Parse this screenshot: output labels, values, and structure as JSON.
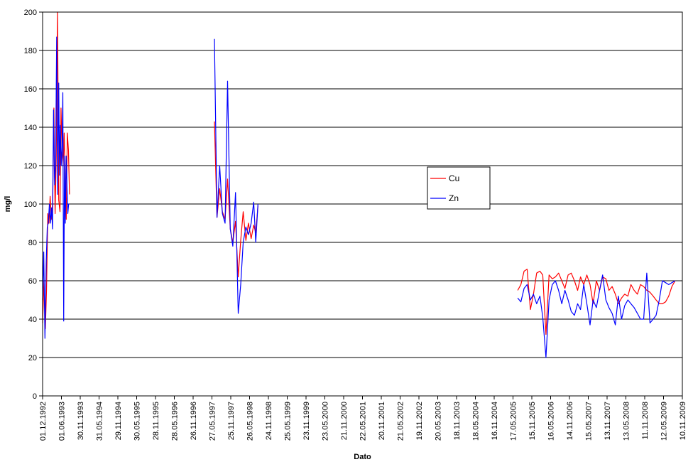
{
  "chart_data": {
    "type": "line",
    "title": "",
    "xlabel": "Dato",
    "ylabel": "mg/l",
    "ylim": [
      0,
      200
    ],
    "y_ticks": [
      "0",
      "20",
      "40",
      "60",
      "80",
      "100",
      "120",
      "140",
      "160",
      "180",
      "200"
    ],
    "x_ticks": [
      "01.12.1992",
      "01.06.1993",
      "30.11.1993",
      "31.05.1994",
      "29.11.1994",
      "30.05.1995",
      "28.11.1995",
      "28.05.1996",
      "26.11.1996",
      "27.05.1997",
      "25.11.1997",
      "26.05.1998",
      "24.11.1998",
      "25.05.1999",
      "23.11.1999",
      "23.05.2000",
      "21.11.2000",
      "22.05.2001",
      "20.11.2001",
      "21.05.2002",
      "19.11.2002",
      "20.05.2003",
      "18.11.2003",
      "18.05.2004",
      "16.11.2004",
      "17.05.2005",
      "15.11.2005",
      "16.05.2006",
      "14.11.2006",
      "15.05.2007",
      "13.11.2007",
      "13.05.2008",
      "11.11.2008",
      "12.05.2009",
      "10.11.2009"
    ],
    "x_range": [
      "1992-12-01",
      "2009-11-10"
    ],
    "grid": "horizontal",
    "legend_position": "center-right",
    "series": [
      {
        "name": "Cu",
        "color": "#ff0000",
        "segments": [
          {
            "x": [
              "1992-12-01",
              "1992-12-14",
              "1992-12-28",
              "1993-01-08",
              "1993-01-20",
              "1993-02-01",
              "1993-02-12",
              "1993-02-24",
              "1993-03-08",
              "1993-03-20",
              "1993-04-01",
              "1993-04-12",
              "1993-04-24",
              "1993-05-06",
              "1993-05-18",
              "1993-05-28",
              "1993-06-08",
              "1993-06-18",
              "1993-06-28",
              "1993-07-08",
              "1993-07-18",
              "1993-07-28",
              "1993-08-08",
              "1993-08-18"
            ],
            "y": [
              38,
              60,
              35,
              55,
              95,
              90,
              104,
              92,
              100,
              150,
              95,
              125,
              200,
              102,
              96,
              150,
              127,
              120,
              137,
              110,
              92,
              137,
              128,
              105
            ]
          },
          {
            "x": [
              "1997-06-20",
              "1997-07-15",
              "1997-08-10",
              "1997-09-05",
              "1997-10-01",
              "1997-10-25",
              "1997-11-20",
              "1997-12-15",
              "1998-01-10",
              "1998-02-05",
              "1998-03-01",
              "1998-03-25",
              "1998-04-20",
              "1998-05-15",
              "1998-06-10",
              "1998-07-05",
              "1998-07-25",
              "1998-08-15"
            ],
            "y": [
              143,
              93,
              108,
              96,
              92,
              113,
              87,
              80,
              91,
              62,
              81,
              96,
              81,
              90,
              82,
              89,
              85,
              99
            ]
          },
          {
            "x": [
              "2005-07-01",
              "2005-08-01",
              "2005-09-01",
              "2005-10-01",
              "2005-11-01",
              "2005-12-01",
              "2006-01-01",
              "2006-02-01",
              "2006-03-01",
              "2006-04-01",
              "2006-05-01",
              "2006-06-01",
              "2006-07-01",
              "2006-08-01",
              "2006-09-01",
              "2006-10-01",
              "2006-11-01",
              "2006-12-01",
              "2007-01-01",
              "2007-02-01",
              "2007-03-01",
              "2007-04-01",
              "2007-05-01",
              "2007-06-01",
              "2007-07-01",
              "2007-08-01",
              "2007-09-01",
              "2007-10-01",
              "2007-11-01",
              "2007-12-01",
              "2008-01-01",
              "2008-02-01",
              "2008-03-01",
              "2008-04-01",
              "2008-05-01",
              "2008-06-01",
              "2008-07-01",
              "2008-08-01",
              "2008-09-01",
              "2008-10-01",
              "2008-11-01",
              "2008-12-01",
              "2009-01-01",
              "2009-02-01",
              "2009-03-01",
              "2009-04-01",
              "2009-05-01",
              "2009-06-01",
              "2009-07-01",
              "2009-08-01",
              "2009-09-01"
            ],
            "y": [
              55,
              58,
              65,
              66,
              45,
              53,
              64,
              65,
              63,
              32,
              63,
              61,
              62,
              64,
              60,
              56,
              63,
              64,
              60,
              55,
              62,
              58,
              63,
              58,
              48,
              60,
              55,
              62,
              61,
              55,
              57,
              53,
              48,
              51,
              53,
              52,
              58,
              55,
              53,
              58,
              57,
              55,
              54,
              52,
              50,
              48,
              48,
              49,
              52,
              57,
              60
            ]
          }
        ]
      },
      {
        "name": "Zn",
        "color": "#0000ff",
        "segments": [
          {
            "x": [
              "1992-12-01",
              "1992-12-12",
              "1992-12-24",
              "1993-01-05",
              "1993-01-15",
              "1993-01-25",
              "1993-02-05",
              "1993-02-15",
              "1993-02-25",
              "1993-03-07",
              "1993-03-17",
              "1993-03-27",
              "1993-04-06",
              "1993-04-16",
              "1993-04-26",
              "1993-05-06",
              "1993-05-14",
              "1993-05-22",
              "1993-05-30",
              "1993-06-07",
              "1993-06-15",
              "1993-06-23",
              "1993-07-01",
              "1993-07-09",
              "1993-07-17",
              "1993-07-25",
              "1993-08-02",
              "1993-08-10",
              "1993-08-18"
            ],
            "y": [
              50,
              75,
              30,
              70,
              88,
              90,
              100,
              90,
              98,
              87,
              149,
              110,
              120,
              187,
              105,
              163,
              115,
              141,
              120,
              130,
              158,
              39,
              125,
              90,
              125,
              108,
              95,
              100,
              100
            ]
          },
          {
            "x": [
              "1997-06-20",
              "1997-07-15",
              "1997-08-10",
              "1997-09-05",
              "1997-10-01",
              "1997-10-25",
              "1997-11-20",
              "1997-12-15",
              "1998-01-10",
              "1998-02-05",
              "1998-03-01",
              "1998-03-25",
              "1998-04-20",
              "1998-05-15",
              "1998-06-10",
              "1998-07-05",
              "1998-07-25",
              "1998-08-15"
            ],
            "y": [
              186,
              93,
              120,
              95,
              90,
              164,
              87,
              78,
              106,
              43,
              58,
              80,
              88,
              84,
              90,
              101,
              80,
              100
            ]
          },
          {
            "x": [
              "2005-07-01",
              "2005-08-01",
              "2005-09-01",
              "2005-10-01",
              "2005-11-01",
              "2005-12-01",
              "2006-01-01",
              "2006-02-01",
              "2006-03-01",
              "2006-04-01",
              "2006-05-01",
              "2006-06-01",
              "2006-07-01",
              "2006-08-01",
              "2006-09-01",
              "2006-10-01",
              "2006-11-01",
              "2006-12-01",
              "2007-01-01",
              "2007-02-01",
              "2007-03-01",
              "2007-04-01",
              "2007-05-01",
              "2007-06-01",
              "2007-07-01",
              "2007-08-01",
              "2007-09-01",
              "2007-10-01",
              "2007-11-01",
              "2007-12-01",
              "2008-01-01",
              "2008-02-01",
              "2008-03-01",
              "2008-04-01",
              "2008-05-01",
              "2008-06-01",
              "2008-07-01",
              "2008-08-01",
              "2008-09-01",
              "2008-10-01",
              "2008-11-01",
              "2008-12-01",
              "2009-01-01",
              "2009-02-01",
              "2009-03-01",
              "2009-04-01",
              "2009-05-01",
              "2009-06-01",
              "2009-07-01",
              "2009-08-01",
              "2009-09-01"
            ],
            "y": [
              51,
              49,
              56,
              58,
              50,
              53,
              48,
              52,
              41,
              20,
              50,
              58,
              60,
              55,
              48,
              55,
              50,
              44,
              42,
              48,
              45,
              58,
              48,
              37,
              50,
              46,
              55,
              63,
              50,
              46,
              43,
              37,
              52,
              40,
              47,
              50,
              48,
              46,
              43,
              40,
              40,
              64,
              38,
              40,
              42,
              50,
              60,
              59,
              58,
              59,
              60
            ]
          }
        ]
      }
    ]
  }
}
